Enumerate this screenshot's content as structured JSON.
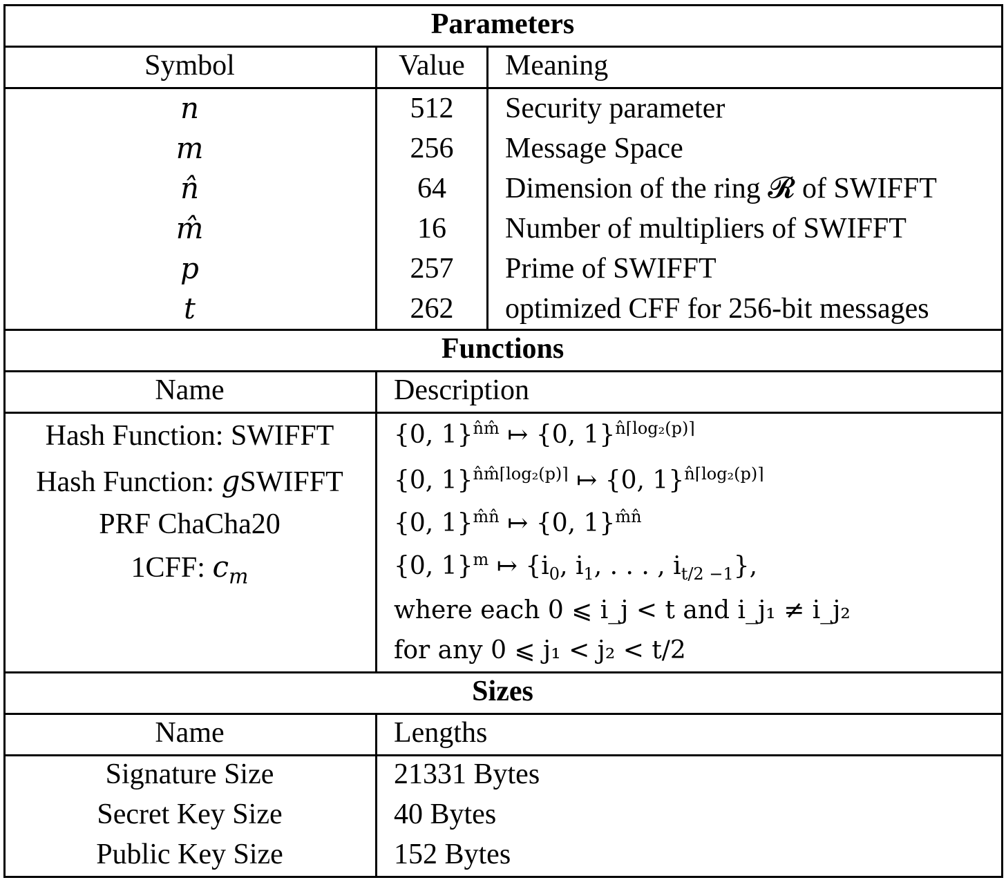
{
  "parameters": {
    "title": "Parameters",
    "headers": {
      "symbol": "Symbol",
      "value": "Value",
      "meaning": "Meaning"
    },
    "rows": [
      {
        "symbol": "n",
        "value": "512",
        "meaning": "Security parameter"
      },
      {
        "symbol": "m",
        "value": "256",
        "meaning": "Message Space"
      },
      {
        "symbol": "n̂",
        "value": "64",
        "meaning": "Dimension of the ring 𝓡 of SWIFFT"
      },
      {
        "symbol": "m̂",
        "value": "16",
        "meaning": "Number of multipliers of SWIFFT"
      },
      {
        "symbol": "p",
        "value": "257",
        "meaning": "Prime of SWIFFT"
      },
      {
        "symbol": "t",
        "value": "262",
        "meaning": "optimized CFF for 256-bit messages"
      }
    ]
  },
  "functions": {
    "title": "Functions",
    "headers": {
      "name": "Name",
      "description": "Description"
    },
    "rows": [
      {
        "name": "Hash Function: SWIFFT",
        "description": {
          "base1": "{0, 1}",
          "exp1": "n̂m̂",
          "arrow": "↦",
          "base2": "{0, 1}",
          "exp2": "n̂⌈log₂(p)⌉"
        }
      },
      {
        "name_prefix": "Hash Function: ",
        "name_var": "g",
        "name_suffix": "SWIFFT",
        "description": {
          "base1": "{0, 1}",
          "exp1": "n̂m̂⌈log₂(p)⌉",
          "arrow": "↦",
          "base2": "{0, 1}",
          "exp2": "n̂⌈log₂(p)⌉"
        }
      },
      {
        "name": "PRF ChaCha20",
        "description": {
          "base1": "{0, 1}",
          "exp1": "m̂n̂",
          "arrow": "↦",
          "base2": "{0, 1}",
          "exp2": "m̂n̂"
        }
      },
      {
        "name_prefix": "1CFF: ",
        "name_var": "c",
        "name_sub": "m",
        "description": {
          "base1": "{0, 1}",
          "exp1": "m",
          "arrow": "↦",
          "set_open": "{i",
          "set_first_sub": "0",
          "set_mid": ", i",
          "set_second_sub": "1",
          "set_dots": ", . . . , i",
          "set_last_sub": "t/2 −1",
          "set_close": "},"
        }
      }
    ],
    "extra_lines": [
      "where each 0 ⩽ i_j < t and i_j₁ ≠ i_j₂",
      "for any 0 ⩽ j₁ < j₂ < t/2"
    ]
  },
  "sizes": {
    "title": "Sizes",
    "headers": {
      "name": "Name",
      "lengths": "Lengths"
    },
    "rows": [
      {
        "name": "Signature Size",
        "length": "21331 Bytes"
      },
      {
        "name": "Secret Key Size",
        "length": "40 Bytes"
      },
      {
        "name": "Public Key Size",
        "length": "152 Bytes"
      }
    ]
  }
}
